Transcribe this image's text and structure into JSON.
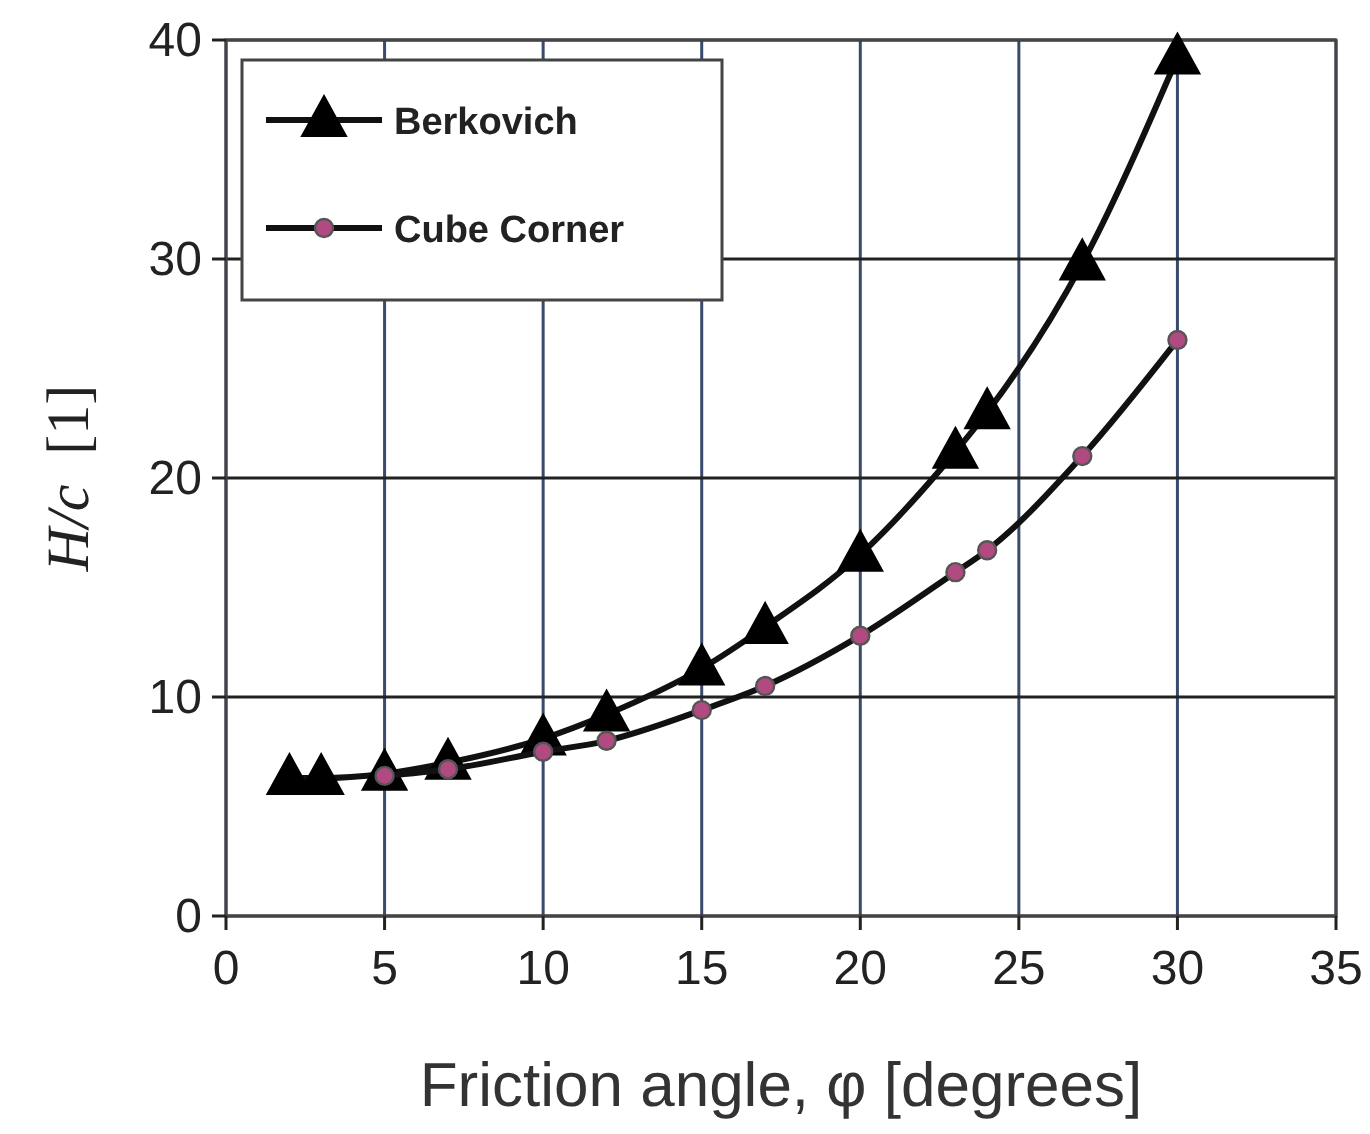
{
  "chart_data": {
    "type": "line",
    "xlabel": "Friction angle, φ  [degrees]",
    "ylabel": "H/c  [1]",
    "xlim": [
      0,
      35
    ],
    "xticks": [
      0,
      5,
      10,
      15,
      20,
      25,
      30,
      35
    ],
    "ylim": [
      0,
      40
    ],
    "yticks": [
      0,
      10,
      20,
      30,
      40
    ],
    "grid": true,
    "legend": "top left",
    "line_style": "solid",
    "series": [
      {
        "name": "Berkovich",
        "color": "#000000",
        "marker": "triangle",
        "x": [
          2,
          3,
          5,
          7,
          10,
          12,
          15,
          17,
          20,
          23,
          24,
          27,
          30
        ],
        "values": [
          6.3,
          6.3,
          6.5,
          7.0,
          8.1,
          9.2,
          11.3,
          13.2,
          16.5,
          21.2,
          23.0,
          29.8,
          39.2
        ]
      },
      {
        "name": "Cube Corner",
        "color": "#b04a80",
        "marker": "circle",
        "x": [
          5,
          7,
          10,
          12,
          15,
          17,
          20,
          23,
          24,
          27,
          30
        ],
        "values": [
          6.4,
          6.7,
          7.5,
          8.0,
          9.4,
          10.5,
          12.8,
          15.7,
          16.7,
          21.0,
          26.3
        ]
      }
    ]
  }
}
